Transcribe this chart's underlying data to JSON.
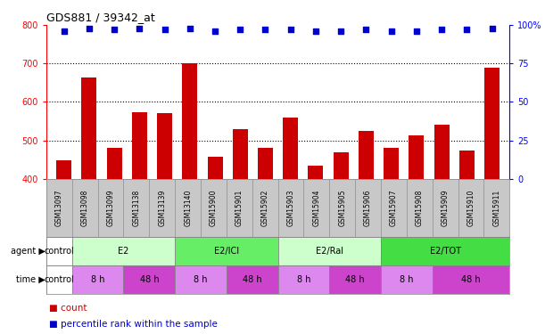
{
  "title": "GDS881 / 39342_at",
  "samples": [
    "GSM13097",
    "GSM13098",
    "GSM13099",
    "GSM13138",
    "GSM13139",
    "GSM13140",
    "GSM15900",
    "GSM15901",
    "GSM15902",
    "GSM15903",
    "GSM15904",
    "GSM15905",
    "GSM15906",
    "GSM15907",
    "GSM15908",
    "GSM15909",
    "GSM15910",
    "GSM15911"
  ],
  "counts": [
    448,
    663,
    481,
    572,
    571,
    700,
    458,
    528,
    481,
    559,
    435,
    469,
    525,
    480,
    513,
    540,
    473,
    690
  ],
  "percentiles": [
    96,
    98,
    97,
    98,
    97,
    98,
    96,
    97,
    97,
    97,
    96,
    96,
    97,
    96,
    96,
    97,
    97,
    98
  ],
  "bar_color": "#cc0000",
  "dot_color": "#0000cc",
  "ylim_left": [
    400,
    800
  ],
  "ylim_right": [
    0,
    100
  ],
  "yticks_left": [
    400,
    500,
    600,
    700,
    800
  ],
  "yticks_right": [
    0,
    25,
    50,
    75,
    100
  ],
  "agent_groups": [
    {
      "label": "control",
      "start": 0,
      "end": 1,
      "color": "#ffffff"
    },
    {
      "label": "E2",
      "start": 1,
      "end": 5,
      "color": "#ccffcc"
    },
    {
      "label": "E2/ICI",
      "start": 5,
      "end": 9,
      "color": "#66ee66"
    },
    {
      "label": "E2/Ral",
      "start": 9,
      "end": 13,
      "color": "#ccffcc"
    },
    {
      "label": "E2/TOT",
      "start": 13,
      "end": 18,
      "color": "#44dd44"
    }
  ],
  "time_groups": [
    {
      "label": "control",
      "start": 0,
      "end": 1,
      "color": "#ffffff"
    },
    {
      "label": "8 h",
      "start": 1,
      "end": 3,
      "color": "#dd88ee"
    },
    {
      "label": "48 h",
      "start": 3,
      "end": 5,
      "color": "#cc44cc"
    },
    {
      "label": "8 h",
      "start": 5,
      "end": 7,
      "color": "#dd88ee"
    },
    {
      "label": "48 h",
      "start": 7,
      "end": 9,
      "color": "#cc44cc"
    },
    {
      "label": "8 h",
      "start": 9,
      "end": 11,
      "color": "#dd88ee"
    },
    {
      "label": "48 h",
      "start": 11,
      "end": 13,
      "color": "#cc44cc"
    },
    {
      "label": "8 h",
      "start": 13,
      "end": 15,
      "color": "#dd88ee"
    },
    {
      "label": "48 h",
      "start": 15,
      "end": 18,
      "color": "#cc44cc"
    }
  ],
  "fig_width": 6.11,
  "fig_height": 3.75,
  "dpi": 100
}
